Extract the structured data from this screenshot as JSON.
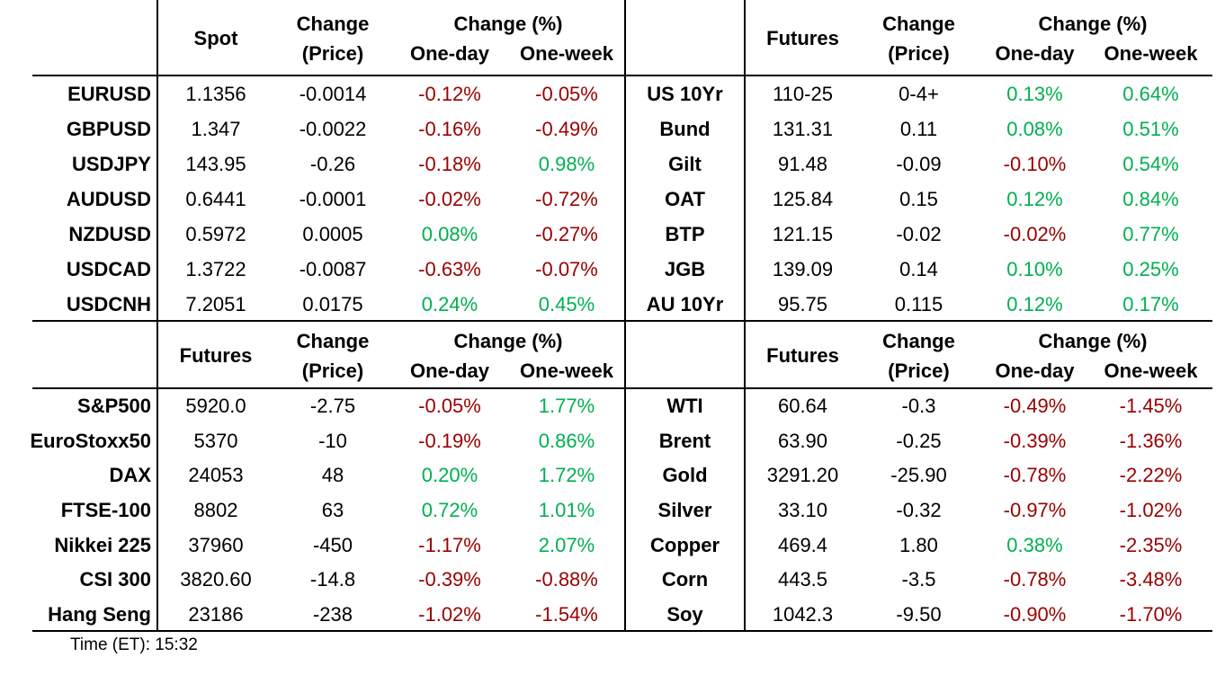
{
  "colors": {
    "positive": "#00B050",
    "negative": "#990000"
  },
  "headers": {
    "change_line1": "Change",
    "change_line2": "(Price)",
    "pct_title": "Change (%)",
    "one_day": "One-day",
    "one_week": "One-week"
  },
  "footer": {
    "label": "Time (ET):",
    "value": "15:32"
  },
  "quadrants": [
    {
      "name": "fx-spot",
      "value_header": "Spot",
      "rows": [
        {
          "label": "EURUSD",
          "value": "1.1356",
          "change": "-0.0014",
          "one_day": "-0.12%",
          "one_week": "-0.05%"
        },
        {
          "label": "GBPUSD",
          "value": "1.347",
          "change": "-0.0022",
          "one_day": "-0.16%",
          "one_week": "-0.49%"
        },
        {
          "label": "USDJPY",
          "value": "143.95",
          "change": "-0.26",
          "one_day": "-0.18%",
          "one_week": "0.98%"
        },
        {
          "label": "AUDUSD",
          "value": "0.6441",
          "change": "-0.0001",
          "one_day": "-0.02%",
          "one_week": "-0.72%"
        },
        {
          "label": "NZDUSD",
          "value": "0.5972",
          "change": "0.0005",
          "one_day": "0.08%",
          "one_week": "-0.27%"
        },
        {
          "label": "USDCAD",
          "value": "1.3722",
          "change": "-0.0087",
          "one_day": "-0.63%",
          "one_week": "-0.07%"
        },
        {
          "label": "USDCNH",
          "value": "7.2051",
          "change": "0.0175",
          "one_day": "0.24%",
          "one_week": "0.45%"
        }
      ]
    },
    {
      "name": "bond-futures",
      "value_header": "Futures",
      "rows": [
        {
          "label": "US 10Yr",
          "value": "110-25",
          "change": "0-4+",
          "one_day": "0.13%",
          "one_week": "0.64%"
        },
        {
          "label": "Bund",
          "value": "131.31",
          "change": "0.11",
          "one_day": "0.08%",
          "one_week": "0.51%"
        },
        {
          "label": "Gilt",
          "value": "91.48",
          "change": "-0.09",
          "one_day": "-0.10%",
          "one_week": "0.54%"
        },
        {
          "label": "OAT",
          "value": "125.84",
          "change": "0.15",
          "one_day": "0.12%",
          "one_week": "0.84%"
        },
        {
          "label": "BTP",
          "value": "121.15",
          "change": "-0.02",
          "one_day": "-0.02%",
          "one_week": "0.77%"
        },
        {
          "label": "JGB",
          "value": "139.09",
          "change": "0.14",
          "one_day": "0.10%",
          "one_week": "0.25%"
        },
        {
          "label": "AU 10Yr",
          "value": "95.75",
          "change": "0.115",
          "one_day": "0.12%",
          "one_week": "0.17%"
        }
      ]
    },
    {
      "name": "equity-index-futures",
      "value_header": "Futures",
      "rows": [
        {
          "label": "S&P500",
          "value": "5920.0",
          "change": "-2.75",
          "one_day": "-0.05%",
          "one_week": "1.77%"
        },
        {
          "label": "EuroStoxx50",
          "value": "5370",
          "change": "-10",
          "one_day": "-0.19%",
          "one_week": "0.86%"
        },
        {
          "label": "DAX",
          "value": "24053",
          "change": "48",
          "one_day": "0.20%",
          "one_week": "1.72%"
        },
        {
          "label": "FTSE-100",
          "value": "8802",
          "change": "63",
          "one_day": "0.72%",
          "one_week": "1.01%"
        },
        {
          "label": "Nikkei 225",
          "value": "37960",
          "change": "-450",
          "one_day": "-1.17%",
          "one_week": "2.07%"
        },
        {
          "label": "CSI 300",
          "value": "3820.60",
          "change": "-14.8",
          "one_day": "-0.39%",
          "one_week": "-0.88%"
        },
        {
          "label": "Hang Seng",
          "value": "23186",
          "change": "-238",
          "one_day": "-1.02%",
          "one_week": "-1.54%"
        }
      ]
    },
    {
      "name": "commodity-futures",
      "value_header": "Futures",
      "rows": [
        {
          "label": "WTI",
          "value": "60.64",
          "change": "-0.3",
          "one_day": "-0.49%",
          "one_week": "-1.45%"
        },
        {
          "label": "Brent",
          "value": "63.90",
          "change": "-0.25",
          "one_day": "-0.39%",
          "one_week": "-1.36%"
        },
        {
          "label": "Gold",
          "value": "3291.20",
          "change": "-25.90",
          "one_day": "-0.78%",
          "one_week": "-2.22%"
        },
        {
          "label": "Silver",
          "value": "33.10",
          "change": "-0.32",
          "one_day": "-0.97%",
          "one_week": "-1.02%"
        },
        {
          "label": "Copper",
          "value": "469.4",
          "change": "1.80",
          "one_day": "0.38%",
          "one_week": "-2.35%"
        },
        {
          "label": "Corn",
          "value": "443.5",
          "change": "-3.5",
          "one_day": "-0.78%",
          "one_week": "-3.48%"
        },
        {
          "label": "Soy",
          "value": "1042.3",
          "change": "-9.50",
          "one_day": "-0.90%",
          "one_week": "-1.70%"
        }
      ]
    }
  ]
}
